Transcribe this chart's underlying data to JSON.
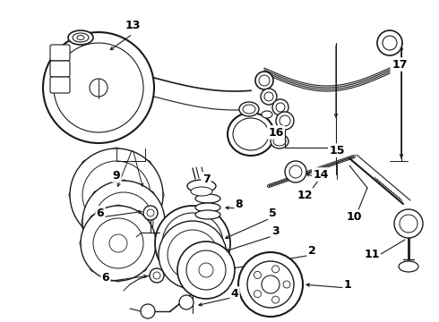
{
  "bg_color": "#ffffff",
  "lc": "#1a1a1a",
  "figsize": [
    4.9,
    3.6
  ],
  "dpi": 100,
  "labels": [
    [
      "1",
      388,
      318
    ],
    [
      "2",
      348,
      280
    ],
    [
      "3",
      307,
      258
    ],
    [
      "4",
      262,
      328
    ],
    [
      "5",
      304,
      238
    ],
    [
      "6",
      112,
      238
    ],
    [
      "6",
      118,
      310
    ],
    [
      "7",
      230,
      200
    ],
    [
      "8",
      267,
      228
    ],
    [
      "9",
      130,
      196
    ],
    [
      "10",
      395,
      242
    ],
    [
      "11",
      415,
      285
    ],
    [
      "12",
      340,
      218
    ],
    [
      "13",
      148,
      28
    ],
    [
      "14",
      358,
      195
    ],
    [
      "15",
      376,
      168
    ],
    [
      "16",
      308,
      148
    ],
    [
      "17",
      446,
      72
    ]
  ]
}
